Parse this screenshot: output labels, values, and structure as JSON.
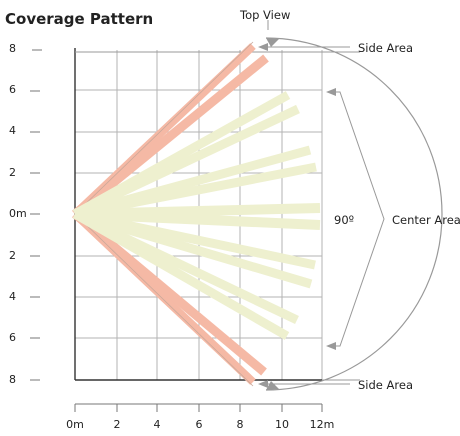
{
  "diagram": {
    "title": "Coverage Pattern",
    "top_view_label": "Top View",
    "side_area_top_label": "Side Area",
    "side_area_bottom_label": "Side Area",
    "center_area_label": "Center Area",
    "angle_label": "90º",
    "y_tick_labels": [
      "8",
      "6",
      "4",
      "2",
      "0m",
      "2",
      "4",
      "6",
      "8"
    ],
    "x_tick_labels": [
      "0m",
      "2",
      "4",
      "6",
      "8",
      "10",
      "12m"
    ],
    "colors": {
      "grid": "#aaaaaa",
      "axis": "#333333",
      "side_beam": "#f5b9a5",
      "center_beam": "#eef0cf",
      "outline": "#999999",
      "text": "#222222"
    }
  }
}
